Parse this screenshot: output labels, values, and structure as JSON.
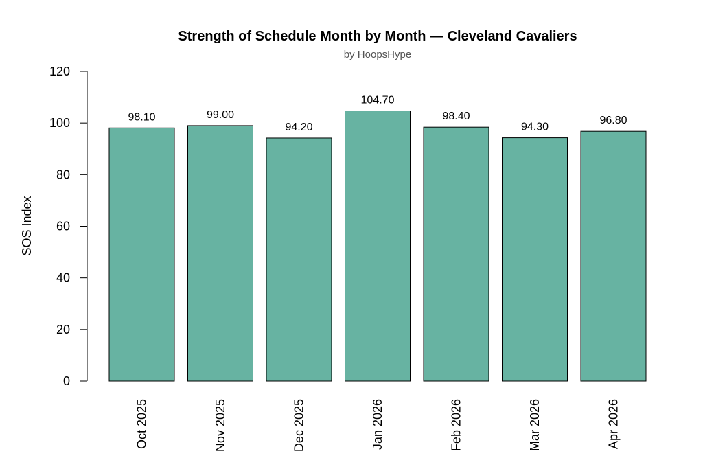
{
  "chart_data": {
    "type": "bar",
    "title": "Strength of Schedule Month by Month — Cleveland Cavaliers",
    "subtitle": "by HoopsHype",
    "xlabel": "",
    "ylabel": "SOS Index",
    "categories": [
      "Oct 2025",
      "Nov 2025",
      "Dec 2025",
      "Jan 2026",
      "Feb 2026",
      "Mar 2026",
      "Apr 2026"
    ],
    "values": [
      98.1,
      99.0,
      94.2,
      104.7,
      98.4,
      94.3,
      96.8
    ],
    "data_labels": [
      "98.10",
      "99.00",
      "94.20",
      "104.70",
      "98.40",
      "94.30",
      "96.80"
    ],
    "ylim": [
      0,
      120
    ],
    "yticks": [
      0,
      20,
      40,
      60,
      80,
      100,
      120
    ],
    "bar_color": "#67b3a2",
    "bar_edge_color": "#000000",
    "grid": false,
    "legend": "none"
  }
}
